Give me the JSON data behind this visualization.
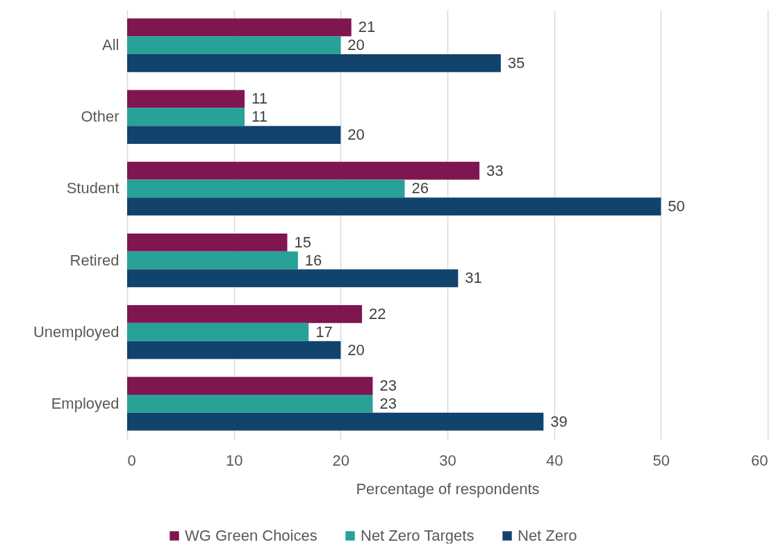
{
  "chart_data": {
    "type": "bar",
    "orientation": "horizontal",
    "xlabel": "Percentage of respondents",
    "categories": [
      "All",
      "Other",
      "Student",
      "Retired",
      "Unemployed",
      "Employed"
    ],
    "series": [
      {
        "name": "WG Green Choices",
        "color": "#7f1650",
        "values": [
          21,
          11,
          33,
          15,
          22,
          23
        ]
      },
      {
        "name": "Net Zero Targets",
        "color": "#28a197",
        "values": [
          20,
          11,
          26,
          16,
          17,
          23
        ]
      },
      {
        "name": "Net Zero",
        "color": "#12436d",
        "values": [
          35,
          20,
          50,
          31,
          20,
          39
        ]
      }
    ],
    "xlim": [
      0,
      60
    ],
    "xticks": [
      0,
      10,
      20,
      30,
      40,
      50,
      60
    ],
    "data_labels": true,
    "grid": "x",
    "legend": "bottom"
  }
}
